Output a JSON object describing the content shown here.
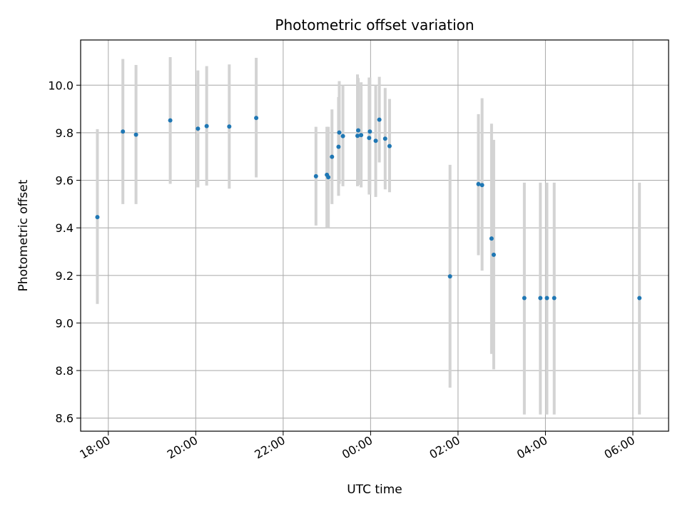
{
  "chart_data": {
    "type": "scatter",
    "title": "Photometric offset variation",
    "xlabel": "UTC time",
    "ylabel": "Photometric offset",
    "x_axis": "time",
    "x_start_date": "day 1",
    "xlim": [
      "17:22",
      "06:49"
    ],
    "ylim": [
      8.545,
      10.19
    ],
    "xticks": [
      "18:00",
      "20:00",
      "22:00",
      "00:00",
      "02:00",
      "04:00",
      "06:00"
    ],
    "yticks": [
      8.6,
      8.8,
      9.0,
      9.2,
      9.4,
      9.6,
      9.8,
      10.0
    ],
    "grid": true,
    "legend": "none",
    "marker_color": "#1f77b4",
    "errorbar_color": "#d3d3d3",
    "points": [
      {
        "t": "17:45",
        "y": 9.445,
        "lo": 9.08,
        "hi": 9.815
      },
      {
        "t": "18:20",
        "y": 9.805,
        "lo": 9.5,
        "hi": 10.11
      },
      {
        "t": "18:38",
        "y": 9.792,
        "lo": 9.5,
        "hi": 10.085
      },
      {
        "t": "19:25",
        "y": 9.852,
        "lo": 9.585,
        "hi": 10.118
      },
      {
        "t": "20:03",
        "y": 9.817,
        "lo": 9.57,
        "hi": 10.062
      },
      {
        "t": "20:15",
        "y": 9.828,
        "lo": 9.578,
        "hi": 10.08
      },
      {
        "t": "20:46",
        "y": 9.826,
        "lo": 9.565,
        "hi": 10.087
      },
      {
        "t": "21:23",
        "y": 9.862,
        "lo": 9.612,
        "hi": 10.115
      },
      {
        "t": "22:45",
        "y": 9.617,
        "lo": 9.41,
        "hi": 9.825
      },
      {
        "t": "23:00",
        "y": 9.623,
        "lo": 9.4,
        "hi": 9.825
      },
      {
        "t": "23:02",
        "y": 9.613,
        "lo": 9.4,
        "hi": 9.825
      },
      {
        "t": "23:07",
        "y": 9.699,
        "lo": 9.5,
        "hi": 9.898
      },
      {
        "t": "23:16",
        "y": 9.741,
        "lo": 9.535,
        "hi": 9.95
      },
      {
        "t": "23:17",
        "y": 9.801,
        "lo": 9.585,
        "hi": 10.017
      },
      {
        "t": "23:22",
        "y": 9.786,
        "lo": 9.575,
        "hi": 10.0
      },
      {
        "t": "23:42",
        "y": 9.787,
        "lo": 9.575,
        "hi": 10.045
      },
      {
        "t": "23:43",
        "y": 9.81,
        "lo": 9.58,
        "hi": 10.03
      },
      {
        "t": "23:47",
        "y": 9.79,
        "lo": 9.57,
        "hi": 10.012
      },
      {
        "t": "23:58",
        "y": 9.778,
        "lo": 9.54,
        "hi": 10.032
      },
      {
        "t": "23:59",
        "y": 9.805,
        "lo": 9.54,
        "hi": 10.032
      },
      {
        "t": "00:07",
        "y": 9.766,
        "lo": 9.53,
        "hi": 10.0
      },
      {
        "t": "00:12",
        "y": 9.855,
        "lo": 9.675,
        "hi": 10.035
      },
      {
        "t": "00:20",
        "y": 9.775,
        "lo": 9.562,
        "hi": 9.988
      },
      {
        "t": "00:26",
        "y": 9.744,
        "lo": 9.55,
        "hi": 9.942
      },
      {
        "t": "01:49",
        "y": 9.196,
        "lo": 8.728,
        "hi": 9.665
      },
      {
        "t": "02:28",
        "y": 9.584,
        "lo": 9.285,
        "hi": 9.878
      },
      {
        "t": "02:33",
        "y": 9.58,
        "lo": 9.22,
        "hi": 9.945
      },
      {
        "t": "02:46",
        "y": 9.355,
        "lo": 8.87,
        "hi": 9.838
      },
      {
        "t": "02:49",
        "y": 9.287,
        "lo": 8.805,
        "hi": 9.77
      },
      {
        "t": "03:31",
        "y": 9.105,
        "lo": 8.615,
        "hi": 9.59
      },
      {
        "t": "03:53",
        "y": 9.105,
        "lo": 8.615,
        "hi": 9.59
      },
      {
        "t": "04:02",
        "y": 9.105,
        "lo": 8.615,
        "hi": 9.59
      },
      {
        "t": "04:12",
        "y": 9.105,
        "lo": 8.615,
        "hi": 9.59
      },
      {
        "t": "06:09",
        "y": 9.105,
        "lo": 8.615,
        "hi": 9.59
      }
    ]
  }
}
